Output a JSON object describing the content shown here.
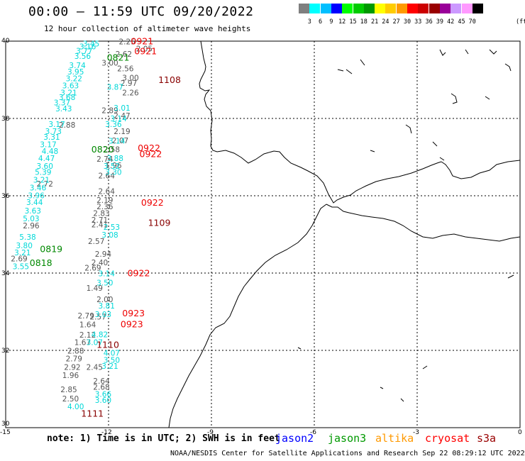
{
  "header": {
    "title": "00:00 – 11:59 UTC 09/20/2022",
    "subtitle": "12 hour collection of altimeter wave heights"
  },
  "colorbar": {
    "colors": [
      "#7f7f7f",
      "#00ffff",
      "#00bfff",
      "#0000ff",
      "#00ff00",
      "#00cc00",
      "#009900",
      "#ffff00",
      "#ffcc00",
      "#ff9900",
      "#ff0000",
      "#cc0000",
      "#990000",
      "#990099",
      "#cc99ff",
      "#ff99ff",
      "#000000"
    ],
    "labels": [
      "3",
      "6",
      "9",
      "12",
      "15",
      "18",
      "21",
      "24",
      "27",
      "30",
      "33",
      "36",
      "39",
      "42",
      "45",
      "70"
    ],
    "unit": "(ft)"
  },
  "axes": {
    "x_ticks": [
      "-15",
      "-12",
      "-9",
      "-6",
      "-3",
      "0"
    ],
    "y_ticks": [
      "40",
      "38",
      "36",
      "34",
      "32",
      "30"
    ]
  },
  "points_cyan": [
    [
      "3.45",
      -12.75,
      39.86
    ],
    [
      "3.16",
      -12.85,
      39.79
    ],
    [
      "3.77",
      -12.95,
      39.68
    ],
    [
      "3.56",
      -13.0,
      39.54
    ],
    [
      "3.74",
      -13.15,
      39.3
    ],
    [
      "3.95",
      -13.2,
      39.14
    ],
    [
      "3.22",
      -13.25,
      38.96
    ],
    [
      "3.63",
      -13.35,
      38.78
    ],
    [
      "3.21",
      -13.4,
      38.6
    ],
    [
      "3.68",
      -13.45,
      38.48
    ],
    [
      "3.37",
      -13.6,
      38.34
    ],
    [
      "3.43",
      -13.55,
      38.18
    ],
    [
      "3.17",
      -13.75,
      37.78
    ],
    [
      "3.73",
      -13.85,
      37.6
    ],
    [
      "3.31",
      -13.9,
      37.45
    ],
    [
      "3.17",
      -14.0,
      37.26
    ],
    [
      "4.48",
      -13.95,
      37.08
    ],
    [
      "4.47",
      -14.05,
      36.9
    ],
    [
      "3.60",
      -14.1,
      36.7
    ],
    [
      "5.39",
      -14.15,
      36.54
    ],
    [
      "3.21",
      -14.2,
      36.34
    ],
    [
      "3.46",
      -14.3,
      36.14
    ],
    [
      "3.96",
      -14.35,
      35.94
    ],
    [
      "3.44",
      -14.4,
      35.76
    ],
    [
      "3.63",
      -14.45,
      35.54
    ],
    [
      "5.03",
      -14.5,
      35.34
    ],
    [
      "5.38",
      -14.6,
      34.86
    ],
    [
      "3.80",
      -14.7,
      34.64
    ],
    [
      "3.21",
      -14.75,
      34.46
    ],
    [
      "3.55",
      -14.8,
      34.1
    ],
    [
      "3.87",
      -12.05,
      38.74
    ],
    [
      "3.01",
      -11.85,
      38.2
    ],
    [
      "3.14",
      -11.95,
      37.93
    ],
    [
      "3.36",
      -12.1,
      37.78
    ],
    [
      "3.14",
      -12.0,
      37.35
    ],
    [
      "3.88",
      -12.05,
      36.9
    ],
    [
      "3.52",
      -12.15,
      36.7
    ],
    [
      "3.30",
      -12.1,
      36.54
    ],
    [
      "2.53",
      -12.15,
      35.12
    ],
    [
      "3.08",
      -12.2,
      34.92
    ],
    [
      "3.14",
      -12.3,
      33.92
    ],
    [
      "3.50",
      -12.35,
      33.68
    ],
    [
      "3.81",
      -12.3,
      33.08
    ],
    [
      "3.03",
      -12.4,
      32.86
    ],
    [
      "4.82",
      -12.5,
      32.34
    ],
    [
      "3.07",
      -12.65,
      32.14
    ],
    [
      "4.07",
      -12.15,
      31.86
    ],
    [
      "3.50",
      -12.15,
      31.68
    ],
    [
      "3.21",
      -12.2,
      31.52
    ],
    [
      "4.00",
      -13.2,
      30.48
    ],
    [
      "3.66",
      -12.4,
      30.8
    ],
    [
      "3.60",
      -12.4,
      30.64
    ]
  ],
  "points_gray": [
    [
      "2.25",
      -11.7,
      39.92
    ],
    [
      "2.05",
      -11.2,
      39.73
    ],
    [
      "2.62",
      -11.8,
      39.6
    ],
    [
      "3.00",
      -12.2,
      39.37
    ],
    [
      "2.56",
      -11.75,
      39.22
    ],
    [
      "3.00",
      -11.6,
      38.98
    ],
    [
      "2.97",
      -11.65,
      38.84
    ],
    [
      "2.26",
      -11.6,
      38.6
    ],
    [
      "2.89",
      -12.2,
      38.14
    ],
    [
      "2.47",
      -11.85,
      38.0
    ],
    [
      "2.19",
      -11.85,
      37.6
    ],
    [
      "2.07",
      -11.9,
      37.36
    ],
    [
      "2.88",
      -13.45,
      37.76
    ],
    [
      "2.72",
      -14.1,
      36.24
    ],
    [
      "2.96",
      -14.5,
      35.16
    ],
    [
      "2.69",
      -14.85,
      34.3
    ],
    [
      "2.58",
      -12.15,
      37.13
    ],
    [
      "2.74",
      -12.35,
      36.88
    ],
    [
      "1.96",
      -12.1,
      36.72
    ],
    [
      "2.64",
      -12.3,
      36.45
    ],
    [
      "2.64",
      -12.3,
      36.05
    ],
    [
      "2.19",
      -12.35,
      35.82
    ],
    [
      "2.36",
      -12.35,
      35.65
    ],
    [
      "2.83",
      -12.45,
      35.48
    ],
    [
      "2.71",
      -12.5,
      35.3
    ],
    [
      "2.41",
      -12.5,
      35.18
    ],
    [
      "2.57",
      -12.6,
      34.75
    ],
    [
      "2.94",
      -12.4,
      34.42
    ],
    [
      "2.40",
      -12.5,
      34.2
    ],
    [
      "2.69",
      -12.7,
      34.06
    ],
    [
      "1.49",
      -12.65,
      33.54
    ],
    [
      "2.00",
      -12.35,
      33.25
    ],
    [
      "2.79",
      -12.9,
      32.83
    ],
    [
      "2.57",
      -12.55,
      32.8
    ],
    [
      "1.64",
      -12.85,
      32.6
    ],
    [
      "2.12",
      -12.85,
      32.33
    ],
    [
      "1.67",
      -13.0,
      32.14
    ],
    [
      "2.88",
      -13.2,
      31.92
    ],
    [
      "2.79",
      -13.25,
      31.72
    ],
    [
      "2.45",
      -12.65,
      31.5
    ],
    [
      "2.92",
      -13.3,
      31.5
    ],
    [
      "1.96",
      -13.35,
      31.28
    ],
    [
      "2.64",
      -12.45,
      31.14
    ],
    [
      "2.85",
      -13.4,
      30.92
    ],
    [
      "2.68",
      -12.45,
      30.98
    ],
    [
      "2.50",
      -13.35,
      30.68
    ]
  ],
  "times_red": [
    [
      "0921",
      -11.35,
      39.92
    ],
    [
      "0921",
      -11.25,
      39.66
    ],
    [
      "0922",
      -11.15,
      37.16
    ],
    [
      "0922",
      -11.1,
      37.0
    ],
    [
      "0922",
      -11.05,
      35.74
    ],
    [
      "0922",
      -11.45,
      33.92
    ],
    [
      "0923",
      -11.6,
      32.88
    ],
    [
      "0923",
      -11.65,
      32.6
    ]
  ],
  "times_dkred": [
    [
      "1108",
      -10.55,
      38.92
    ],
    [
      "1109",
      -10.85,
      35.22
    ],
    [
      "1110",
      -12.35,
      32.06
    ],
    [
      "1111",
      -12.8,
      30.28
    ]
  ],
  "times_green": [
    [
      "0821",
      -12.05,
      39.5
    ],
    [
      "0820",
      -12.5,
      37.12
    ],
    [
      "0819",
      -14.0,
      34.54
    ],
    [
      "0818",
      -14.3,
      34.18
    ]
  ],
  "note": "note: 1) Time is in UTC; 2) SWH is in feet",
  "legend": [
    {
      "label": "jason2",
      "color": "#0000ff"
    },
    {
      "label": "jason3",
      "color": "#009900"
    },
    {
      "label": "altika",
      "color": "#ff9900"
    },
    {
      "label": "cryosat",
      "color": "#ff0000"
    },
    {
      "label": "s3a",
      "color": "#990000"
    }
  ],
  "credit": "NOAA/NESDIS Center for Satellite Applications and Research   Sep 22 08:29:12 UTC 2022"
}
